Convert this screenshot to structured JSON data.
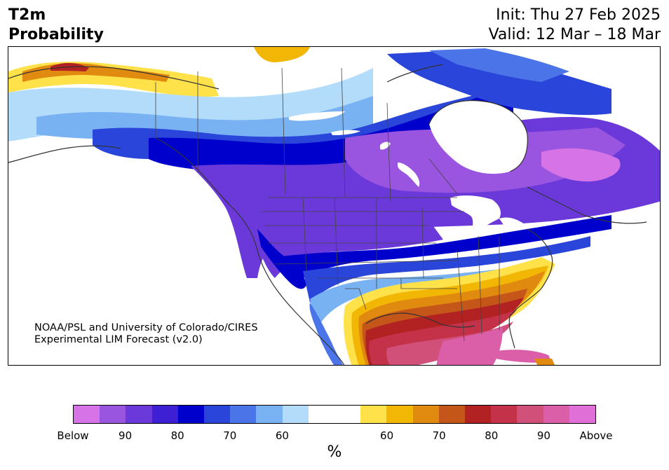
{
  "title": {
    "left_line1": "T2m",
    "left_line2": "Probability"
  },
  "header": {
    "init": "Init: Thu 27 Feb 2025",
    "valid": "Valid: 12 Mar – 18 Mar"
  },
  "credit": {
    "line1": "NOAA/PSL and University of Colorado/CIRES",
    "line2": "Experimental LIM Forecast (v2.0)"
  },
  "colorbar": {
    "unit": "%",
    "colors": [
      "#d673e6",
      "#9a55e0",
      "#6b39d9",
      "#3d1fd4",
      "#0000cc",
      "#2a45d9",
      "#4a74e8",
      "#78b2f2",
      "#b3dcfa",
      "#ffffff",
      "#ffffff",
      "#ffe14a",
      "#f2b705",
      "#e08a10",
      "#c4561a",
      "#b22222",
      "#c4324a",
      "#d0507a",
      "#da5fa8",
      "#e070d8"
    ],
    "ticks": [
      "Below",
      "90",
      "80",
      "70",
      "60",
      "60",
      "70",
      "80",
      "90",
      "Above"
    ]
  },
  "legend_colors": {
    "below_strong": "#d673e6",
    "below_purple": "#6b39d9",
    "below_blue": "#0000cc",
    "below_light": "#b3dcfa",
    "above_yellow": "#ffe14a",
    "above_orange": "#e08a10",
    "above_red": "#b22222",
    "above_pink": "#da5fa8"
  }
}
